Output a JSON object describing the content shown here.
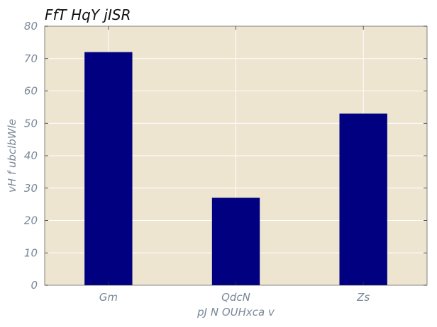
{
  "chart_data": {
    "type": "bar",
    "title": "FfT HqY  jISR",
    "xlabel": "pJ N OUHxca v",
    "ylabel": "vH f  ubclbWle",
    "categories": [
      "Gm",
      "QdcN",
      "Zs"
    ],
    "values": [
      72,
      27,
      53
    ],
    "ylim": [
      0,
      80
    ],
    "yticks": [
      0,
      10,
      20,
      30,
      40,
      50,
      60,
      70,
      80
    ],
    "grid": true,
    "colors": {
      "bar": "#000080",
      "plot_background": "#ede5d0",
      "grid": "#ffffff",
      "tick_text": "#7a8898"
    }
  }
}
